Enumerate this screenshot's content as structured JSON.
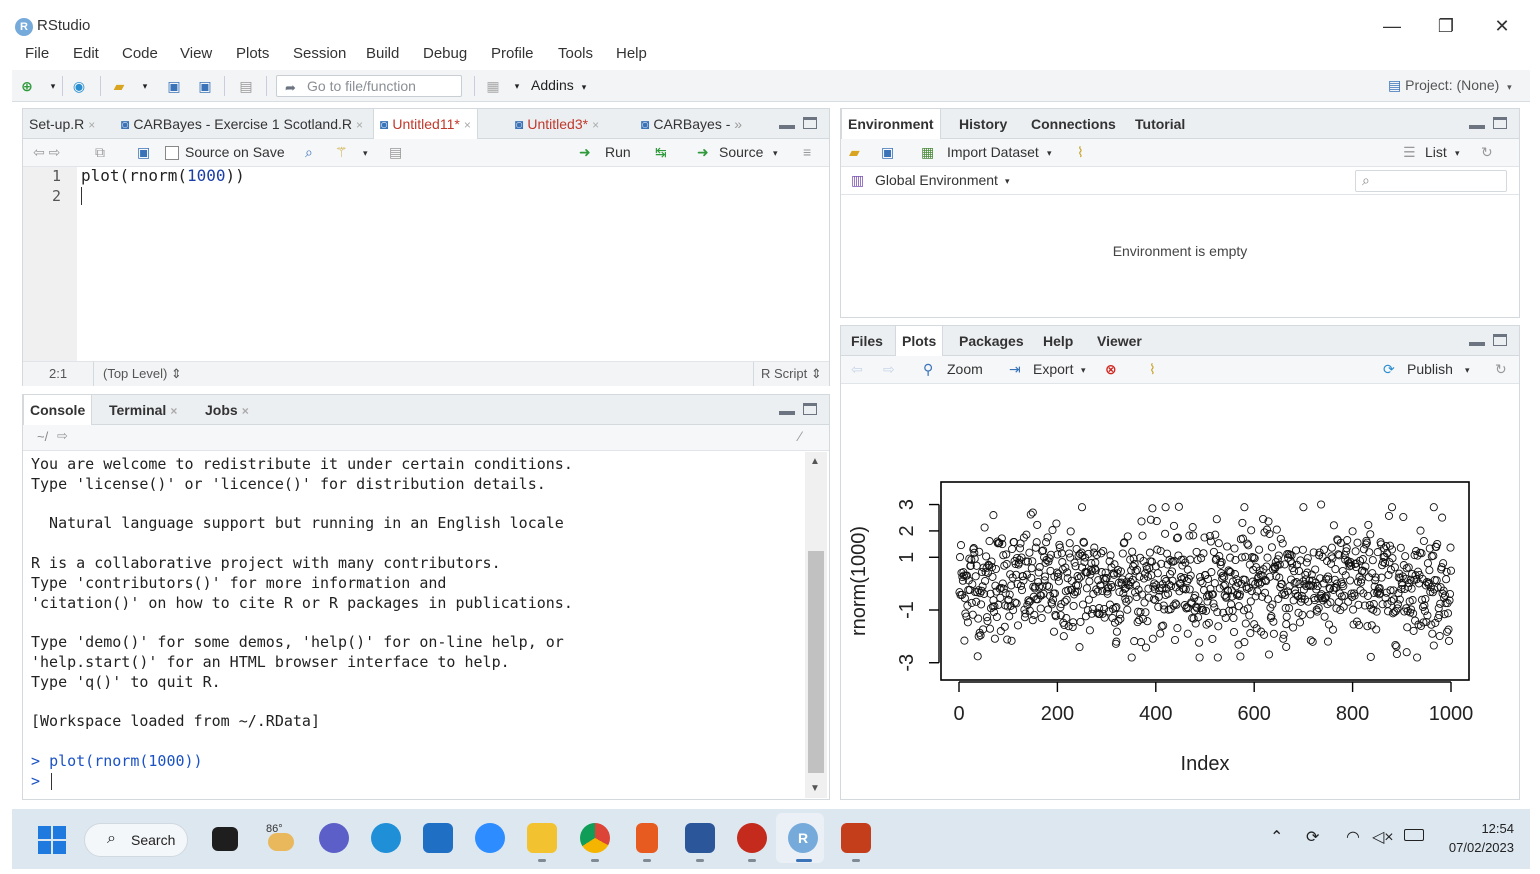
{
  "window": {
    "title": "RStudio",
    "logo_letter": "R",
    "controls": [
      "—",
      "❐",
      "✕"
    ]
  },
  "menu": [
    "File",
    "Edit",
    "Code",
    "View",
    "Plots",
    "Session",
    "Build",
    "Debug",
    "Profile",
    "Tools",
    "Help"
  ],
  "toolbar": {
    "goto_placeholder": "Go to file/function",
    "addins": "Addins",
    "project": "Project: (None)"
  },
  "editor": {
    "tabs": [
      {
        "label": "Set-up.R",
        "active": false,
        "modified": false
      },
      {
        "label": "CARBayes - Exercise 1 Scotland.R",
        "active": false,
        "modified": false
      },
      {
        "label": "Untitled11*",
        "active": true,
        "modified": true
      },
      {
        "label": "Untitled3*",
        "active": false,
        "modified": true
      },
      {
        "label": "CARBayes - ",
        "active": false,
        "modified": false
      }
    ],
    "overflow_label": "»",
    "source_on_save": "Source on Save",
    "run_label": "Run",
    "source_label": "Source",
    "lines": [
      {
        "num": "1",
        "pre": "plot(rnorm(",
        "num_val": "1000",
        "post": "))"
      },
      {
        "num": "2",
        "pre": "",
        "num_val": "",
        "post": ""
      }
    ],
    "status_position": "2:1",
    "status_scope": "(Top Level)",
    "status_type": "R Script"
  },
  "console": {
    "tabs": [
      "Console",
      "Terminal",
      "Jobs"
    ],
    "path": "~/",
    "output": [
      "You are welcome to redistribute it under certain conditions.",
      "Type 'license()' or 'licence()' for distribution details.",
      "",
      "  Natural language support but running in an English locale",
      "",
      "R is a collaborative project with many contributors.",
      "Type 'contributors()' for more information and",
      "'citation()' on how to cite R or R packages in publications.",
      "",
      "Type 'demo()' for some demos, 'help()' for on-line help, or",
      "'help.start()' for an HTML browser interface to help.",
      "Type 'q()' to quit R.",
      "",
      "[Workspace loaded from ~/.RData]",
      ""
    ],
    "prompt_symbol": ">",
    "last_command": "plot(rnorm(1000))"
  },
  "environment": {
    "tabs": [
      "Environment",
      "History",
      "Connections",
      "Tutorial"
    ],
    "import_dataset": "Import Dataset",
    "list_label": "List",
    "global_env": "Global Environment",
    "empty_message": "Environment is empty"
  },
  "files": {
    "tabs": [
      "Files",
      "Plots",
      "Packages",
      "Help",
      "Viewer"
    ],
    "active_tab": "Plots",
    "zoom": "Zoom",
    "export": "Export",
    "publish": "Publish"
  },
  "chart_data": {
    "type": "scatter",
    "title": "",
    "xlabel": "Index",
    "ylabel": "rnorm(1000)",
    "xlim": [
      0,
      1000
    ],
    "ylim": [
      -3.2,
      3.4
    ],
    "x_ticks": [
      0,
      200,
      400,
      600,
      800,
      1000
    ],
    "y_ticks": [
      -3,
      -1,
      1,
      2,
      3
    ],
    "n_points": 1000,
    "marker": "open-circle",
    "series": [
      {
        "points_sample": [
          [
            70,
            2.6
          ],
          [
            150,
            2.7
          ],
          [
            250,
            2.9
          ],
          [
            420,
            2.9
          ],
          [
            580,
            2.9
          ],
          [
            700,
            2.9
          ],
          [
            880,
            2.9
          ],
          [
            965,
            2.9
          ],
          [
            320,
            -2.2
          ],
          [
            465,
            -1.9
          ],
          [
            665,
            -2.4
          ],
          [
            750,
            -2.2
          ],
          [
            910,
            -2.6
          ],
          [
            40,
            -2.0
          ]
        ]
      }
    ]
  },
  "taskbar": {
    "search": "Search",
    "weather_temp": "86°",
    "time": "12:54",
    "date": "07/02/2023"
  }
}
